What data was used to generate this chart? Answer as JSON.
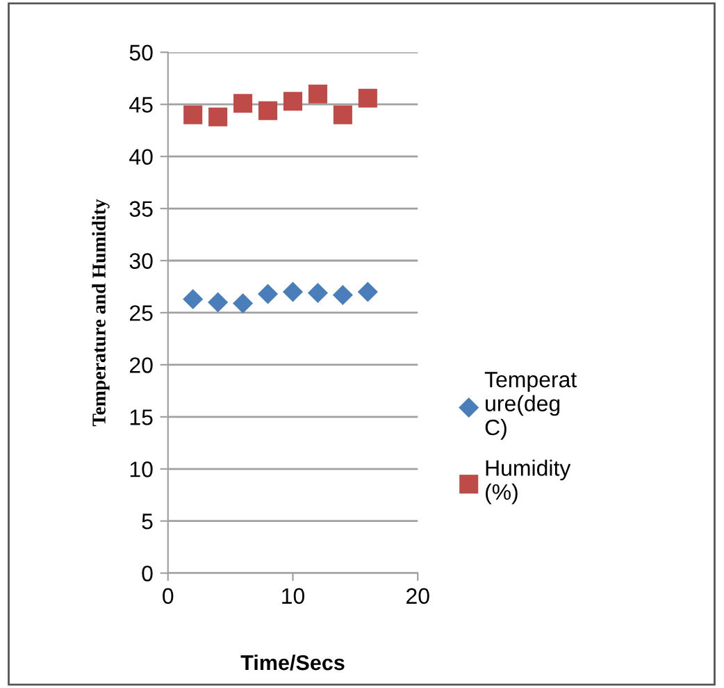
{
  "chart_data": {
    "type": "scatter",
    "xlabel": "Time/Secs",
    "ylabel": "Temperature and Humidity",
    "x": [
      2,
      4,
      6,
      8,
      10,
      12,
      14,
      16
    ],
    "series": [
      {
        "name": "Temperature(deg C)",
        "color": "#4a7ebb",
        "marker": "diamond",
        "values": [
          26.3,
          26.0,
          25.9,
          26.8,
          27.0,
          26.9,
          26.7,
          27.0
        ]
      },
      {
        "name": "Humidity (%)",
        "color": "#be4b48",
        "marker": "square",
        "values": [
          44.0,
          43.8,
          45.1,
          44.4,
          45.3,
          46.0,
          44.0,
          45.6
        ]
      }
    ],
    "xlim": [
      0,
      20
    ],
    "xticks": [
      0,
      10,
      20
    ],
    "ylim": [
      0,
      50
    ],
    "yticks": [
      0,
      5,
      10,
      15,
      20,
      25,
      30,
      35,
      40,
      45,
      50
    ],
    "grid": "y",
    "legend": "right"
  }
}
